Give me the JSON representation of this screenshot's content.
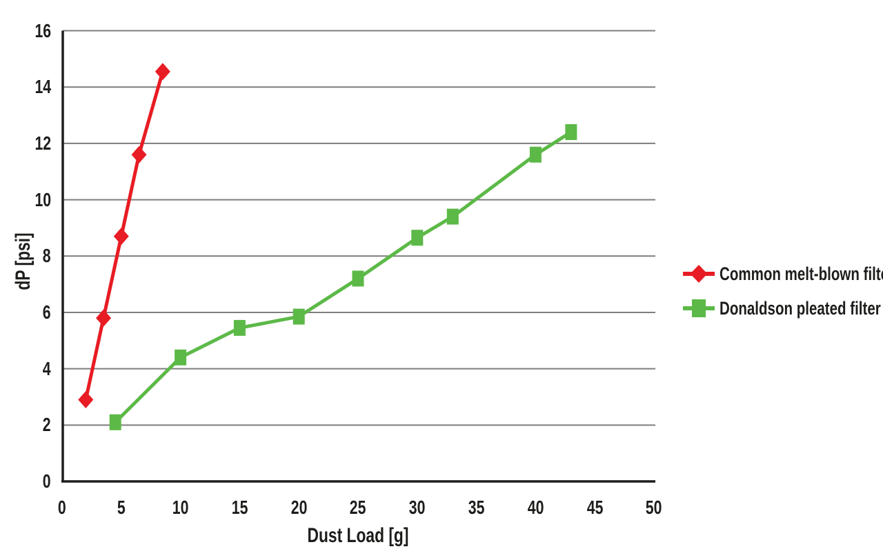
{
  "chart_data": {
    "type": "line",
    "title": "",
    "xlabel": "Dust Load [g]",
    "ylabel": "dP [psi]",
    "xlim": [
      0,
      50
    ],
    "ylim": [
      0,
      16
    ],
    "x_ticks": [
      0,
      5,
      10,
      15,
      20,
      25,
      30,
      35,
      40,
      45,
      50
    ],
    "y_ticks": [
      0,
      2,
      4,
      6,
      8,
      10,
      12,
      14,
      16
    ],
    "grid": "horizontal-gridlines-only",
    "legend_position": "right-center",
    "series": [
      {
        "name": "Common melt-blown filter",
        "color": "#e81c24",
        "marker": "diamond",
        "x": [
          2,
          3.5,
          5,
          6.5,
          8.5
        ],
        "y": [
          2.9,
          5.8,
          8.7,
          11.6,
          14.55
        ]
      },
      {
        "name": "Donaldson pleated filter",
        "color": "#5cb947",
        "marker": "square",
        "x": [
          4.5,
          10,
          15,
          20,
          25,
          30,
          33,
          40,
          43
        ],
        "y": [
          2.1,
          4.4,
          5.45,
          5.85,
          7.2,
          8.65,
          9.4,
          11.6,
          12.4
        ]
      }
    ]
  },
  "colors": {
    "background": "#ffffff",
    "axis": "#1d1d1b",
    "grid": "#7d7d7d",
    "text": "#1d1d1b"
  }
}
